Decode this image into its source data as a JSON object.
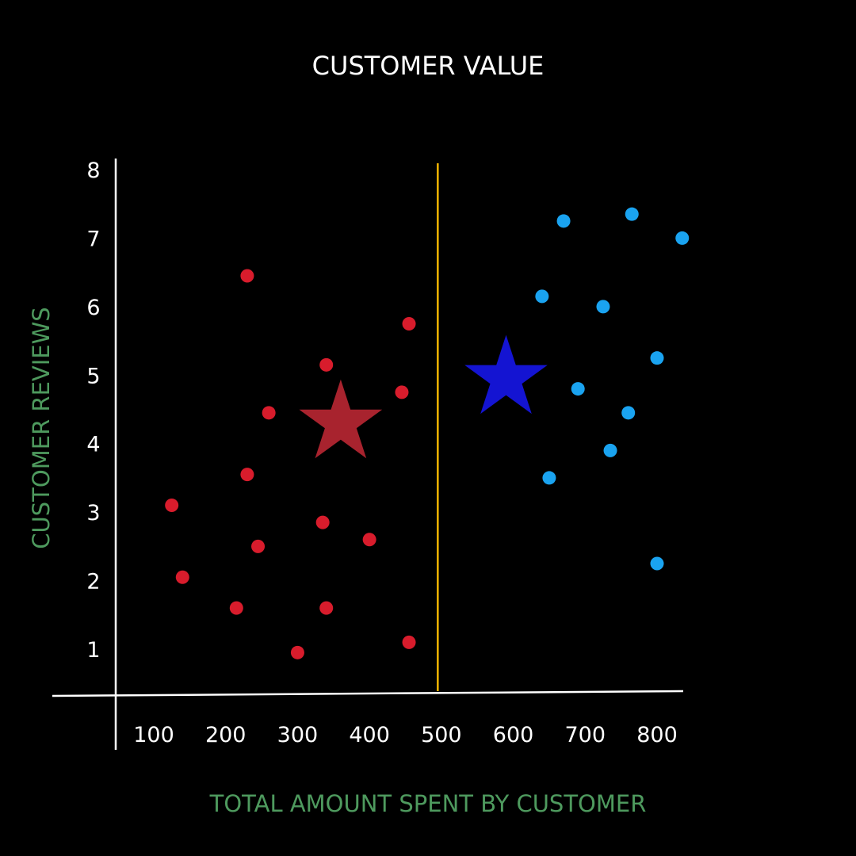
{
  "colors": {
    "background": "#000000",
    "axis": "#ffffff",
    "label": "#4e9a5e",
    "divider": "#f0b400",
    "cluster_a": "#d81c2c",
    "cluster_b": "#1aa3f0",
    "centroid_a": "#a8232e",
    "centroid_b": "#1414d2"
  },
  "chart_data": {
    "type": "scatter",
    "title": "CUSTOMER VALUE",
    "xlabel": "TOTAL AMOUNT SPENT BY CUSTOMER",
    "ylabel": "CUSTOMER REVIEWS",
    "xlim": [
      0,
      850
    ],
    "ylim": [
      0.3,
      8.2
    ],
    "x_ticks": [
      100,
      200,
      300,
      400,
      500,
      600,
      700,
      800
    ],
    "y_ticks": [
      1,
      2,
      3,
      4,
      5,
      6,
      7,
      8
    ],
    "grid": false,
    "divider_x": 495,
    "series": [
      {
        "color_key": "cluster_a",
        "points": [
          {
            "x": 230,
            "y": 6.45
          },
          {
            "x": 455,
            "y": 5.75
          },
          {
            "x": 340,
            "y": 5.15
          },
          {
            "x": 445,
            "y": 4.75
          },
          {
            "x": 260,
            "y": 4.45
          },
          {
            "x": 230,
            "y": 3.55
          },
          {
            "x": 125,
            "y": 3.1
          },
          {
            "x": 335,
            "y": 2.85
          },
          {
            "x": 400,
            "y": 2.6
          },
          {
            "x": 245,
            "y": 2.5
          },
          {
            "x": 140,
            "y": 2.05
          },
          {
            "x": 215,
            "y": 1.6
          },
          {
            "x": 340,
            "y": 1.6
          },
          {
            "x": 455,
            "y": 1.1
          },
          {
            "x": 300,
            "y": 0.95
          }
        ]
      },
      {
        "color_key": "cluster_b",
        "points": [
          {
            "x": 670,
            "y": 7.25
          },
          {
            "x": 765,
            "y": 7.35
          },
          {
            "x": 835,
            "y": 7.0
          },
          {
            "x": 640,
            "y": 6.15
          },
          {
            "x": 725,
            "y": 6.0
          },
          {
            "x": 800,
            "y": 5.25
          },
          {
            "x": 690,
            "y": 4.8
          },
          {
            "x": 760,
            "y": 4.45
          },
          {
            "x": 735,
            "y": 3.9
          },
          {
            "x": 650,
            "y": 3.5
          },
          {
            "x": 800,
            "y": 2.25
          }
        ]
      }
    ],
    "centroids": [
      {
        "color_key": "centroid_a",
        "x": 360,
        "y": 4.3
      },
      {
        "color_key": "centroid_b",
        "x": 590,
        "y": 4.95
      }
    ]
  }
}
